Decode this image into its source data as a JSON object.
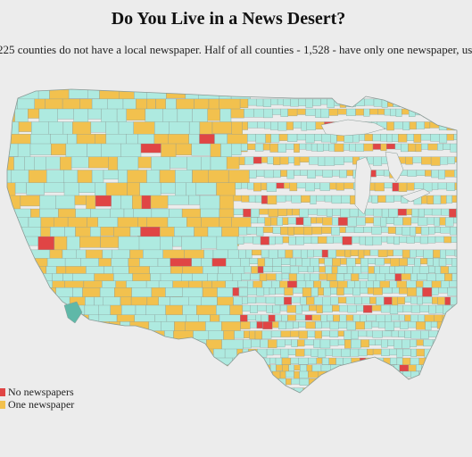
{
  "title": "Do You Live in a News Desert?",
  "subtitle": "225 counties do not have a local newspaper. Half of all counties - 1,528 - have only one newspaper, us",
  "legend": [
    {
      "label": "No newspapers",
      "color": "#e04545"
    },
    {
      "label": "One newspaper",
      "color": "#f2c14e"
    }
  ],
  "colors": {
    "background": "#ececec",
    "multiple_newspapers": "#aeeae0",
    "one_newspaper": "#f2c14e",
    "no_newspapers": "#e04545",
    "county_border": "#8a9a96",
    "highlight_county": "#5fb8a8"
  }
}
